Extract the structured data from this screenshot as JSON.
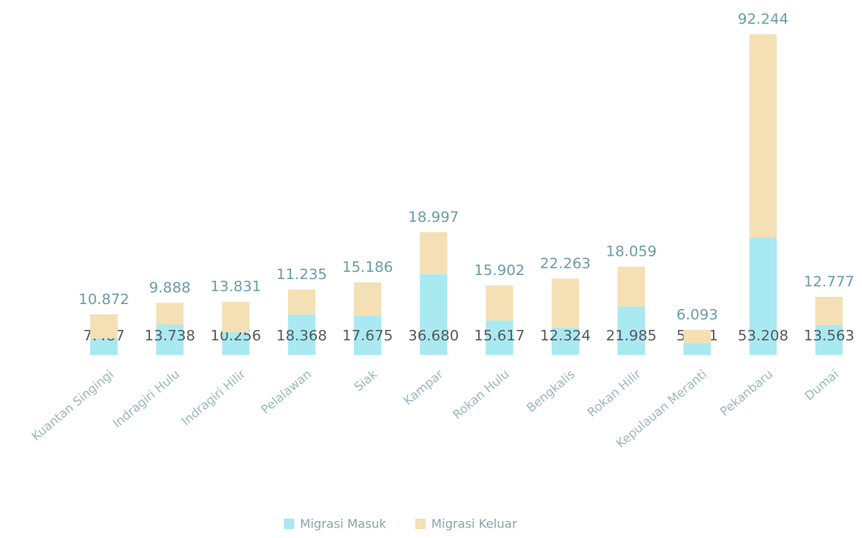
{
  "chart_data": {
    "type": "stacked_bar",
    "categories": [
      "Kuantan Singingi",
      "Indragiri Hulu",
      "Indragiri Hilir",
      "Pelalawan",
      "Siak",
      "Kampar",
      "Rokan Hulu",
      "Bengkalis",
      "Rokan Hilir",
      "Kepulauan Meranti",
      "Pekanbaru",
      "Dumai"
    ],
    "series": [
      {
        "name": "Migrasi Masuk",
        "color": "#a9e9f2",
        "values": [
          7487,
          13738,
          10256,
          18368,
          17675,
          36680,
          15617,
          12324,
          21985,
          5291,
          53208,
          13563
        ],
        "value_labels": [
          "7.487",
          "13.738",
          "10.256",
          "18.368",
          "17.675",
          "36.680",
          "15.617",
          "12.324",
          "21.985",
          "5.291",
          "53.208",
          "13.563"
        ]
      },
      {
        "name": "Migrasi Keluar",
        "color": "#f4e0b4",
        "values": [
          10872,
          9888,
          13831,
          11235,
          15186,
          18997,
          15902,
          22263,
          18059,
          6093,
          92244,
          12777
        ],
        "value_labels": [
          "10.872",
          "9.888",
          "13.831",
          "11.235",
          "15.186",
          "18.997",
          "15.902",
          "22.263",
          "18.059",
          "6.093",
          "92.244",
          "12.777"
        ]
      }
    ],
    "ylim": [
      0,
      150000
    ],
    "legend": "bottom"
  }
}
